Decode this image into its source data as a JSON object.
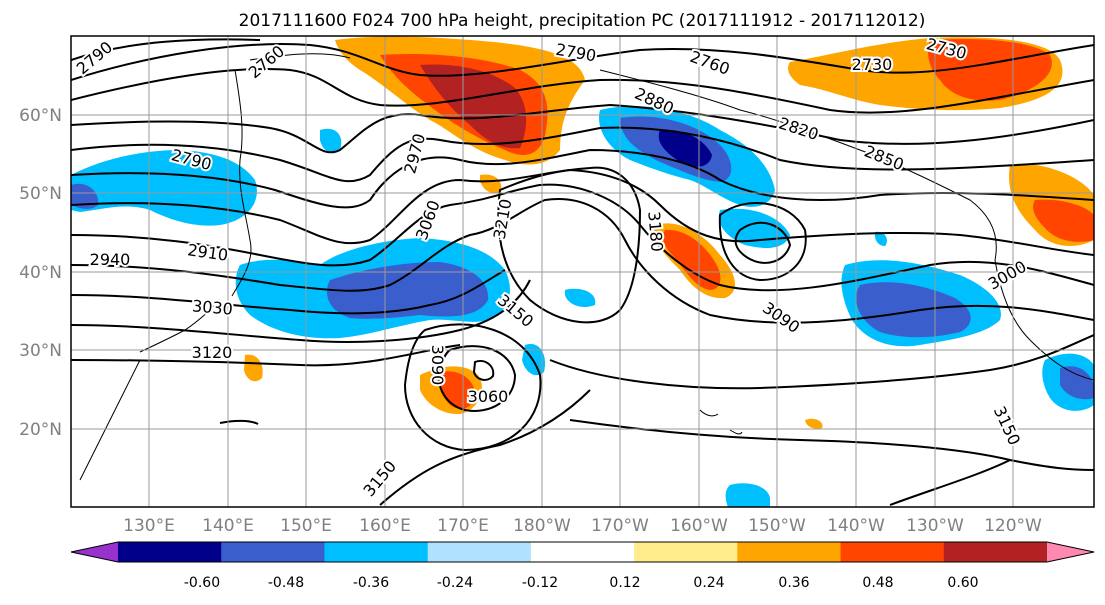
{
  "title": "2017111600 F024 700 hPa height, precipitation PC (2017111912 - 2017112012)",
  "axes": {
    "lat_labels": [
      "60°N",
      "50°N",
      "40°N",
      "30°N",
      "20°N"
    ],
    "lon_labels": [
      "130°E",
      "140°E",
      "150°E",
      "160°E",
      "170°E",
      "180°W",
      "170°W",
      "160°W",
      "150°W",
      "140°W",
      "130°W",
      "120°W"
    ]
  },
  "contour_labels": [
    "2790",
    "2760",
    "2790",
    "2760",
    "2730",
    "2730",
    "2880",
    "2820",
    "2850",
    "2790",
    "2970",
    "3060",
    "3210",
    "3180",
    "2910",
    "2940",
    "3030",
    "3000",
    "3150",
    "3090",
    "3120",
    "3090",
    "3060",
    "3150",
    "3150"
  ],
  "colorbar": {
    "tick_labels": [
      "-0.60",
      "-0.48",
      "-0.36",
      "-0.24",
      "-0.12",
      "0.12",
      "0.24",
      "0.36",
      "0.48",
      "0.60"
    ],
    "colors": [
      "#9932cc",
      "#00008b",
      "#3a5fcd",
      "#00bfff",
      "#b0e2ff",
      "#ffffff",
      "#ffec8b",
      "#ffa500",
      "#ff4500",
      "#b22222",
      "#ff88b0"
    ]
  }
}
